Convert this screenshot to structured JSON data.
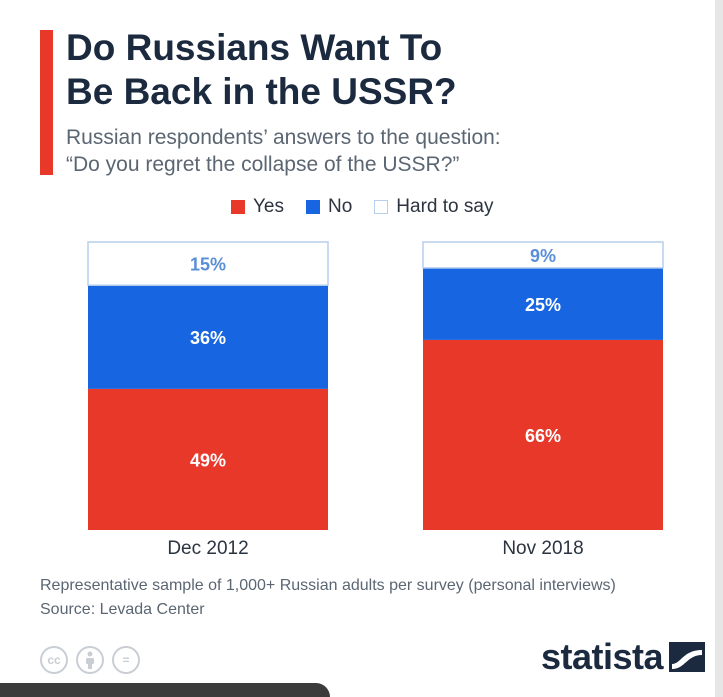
{
  "chart_data": {
    "type": "bar",
    "stacked": true,
    "title": "Do Russians Want To Be Back in the USSR?",
    "title_lines": [
      "Do Russians Want To",
      "Be Back in the USSR?"
    ],
    "subtitle_lines": [
      "Russian respondents’ answers to the question:",
      "“Do you regret the collapse of the USSR?”"
    ],
    "categories": [
      "Dec 2012",
      "Nov 2018"
    ],
    "series": [
      {
        "name": "Yes",
        "color": "#e8382a",
        "values": [
          49,
          66
        ]
      },
      {
        "name": "No",
        "color": "#1765e0",
        "values": [
          36,
          25
        ]
      },
      {
        "name": "Hard to say",
        "color": "#ffffff",
        "values": [
          15,
          9
        ]
      }
    ],
    "value_suffix": "%",
    "ylim": [
      0,
      100
    ],
    "legend_position": "top",
    "grid": false
  },
  "footnote": {
    "sample": "Representative sample of 1,000+ Russian adults per survey (personal interviews)",
    "source": "Source: Levada Center"
  },
  "branding": {
    "name": "statista",
    "license_icons": [
      "cc",
      "by",
      "="
    ]
  },
  "colors": {
    "title": "#1b2a3e",
    "label_light": "#ffffff",
    "label_on_white": "#5a8fd6",
    "outline": "#b7cfee"
  }
}
